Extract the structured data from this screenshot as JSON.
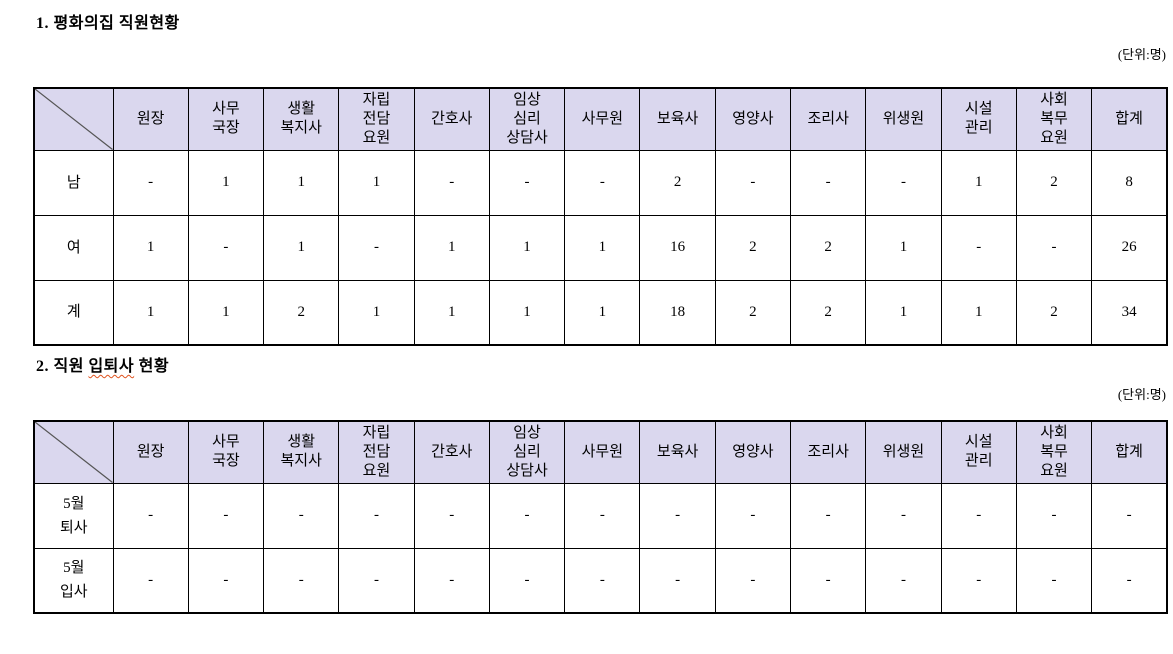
{
  "document": {
    "colors": {
      "header_bg": "#dad7ee",
      "border": "#000000",
      "diagonal_line": "#555555",
      "spellcheck_underline": "#e0531f",
      "text": "#000000"
    },
    "sections": [
      {
        "title": "1. 평화의집 직원현황",
        "unit_label": "(단위:명)",
        "table": {
          "columns": [
            "원장",
            "사무\n국장",
            "생활\n복지사",
            "자립\n전담\n요원",
            "간호사",
            "임상\n심리\n상담사",
            "사무원",
            "보육사",
            "영양사",
            "조리사",
            "위생원",
            "시설\n관리",
            "사회\n복무\n요원",
            "합계"
          ],
          "rows": [
            {
              "label": "남",
              "values": [
                "-",
                "1",
                "1",
                "1",
                "-",
                "-",
                "-",
                "2",
                "-",
                "-",
                "-",
                "1",
                "2",
                "8"
              ]
            },
            {
              "label": "여",
              "values": [
                "1",
                "-",
                "1",
                "-",
                "1",
                "1",
                "1",
                "16",
                "2",
                "2",
                "1",
                "-",
                "-",
                "26"
              ]
            },
            {
              "label": "계",
              "values": [
                "1",
                "1",
                "2",
                "1",
                "1",
                "1",
                "1",
                "18",
                "2",
                "2",
                "1",
                "1",
                "2",
                "34"
              ]
            }
          ]
        }
      },
      {
        "title_prefix": "2. 직원 ",
        "title_spellcheck_word": "입퇴사",
        "title_suffix": " 현황",
        "unit_label": "(단위:명)",
        "table": {
          "columns": [
            "원장",
            "사무\n국장",
            "생활\n복지사",
            "자립\n전담\n요원",
            "간호사",
            "임상\n심리\n상담사",
            "사무원",
            "보육사",
            "영양사",
            "조리사",
            "위생원",
            "시설\n관리",
            "사회\n복무\n요원",
            "합계"
          ],
          "rows": [
            {
              "label": "5월\n퇴사",
              "values": [
                "-",
                "-",
                "-",
                "-",
                "-",
                "-",
                "-",
                "-",
                "-",
                "-",
                "-",
                "-",
                "-",
                "-"
              ]
            },
            {
              "label": "5월\n입사",
              "values": [
                "-",
                "-",
                "-",
                "-",
                "-",
                "-",
                "-",
                "-",
                "-",
                "-",
                "-",
                "-",
                "-",
                "-"
              ]
            }
          ]
        }
      }
    ]
  }
}
